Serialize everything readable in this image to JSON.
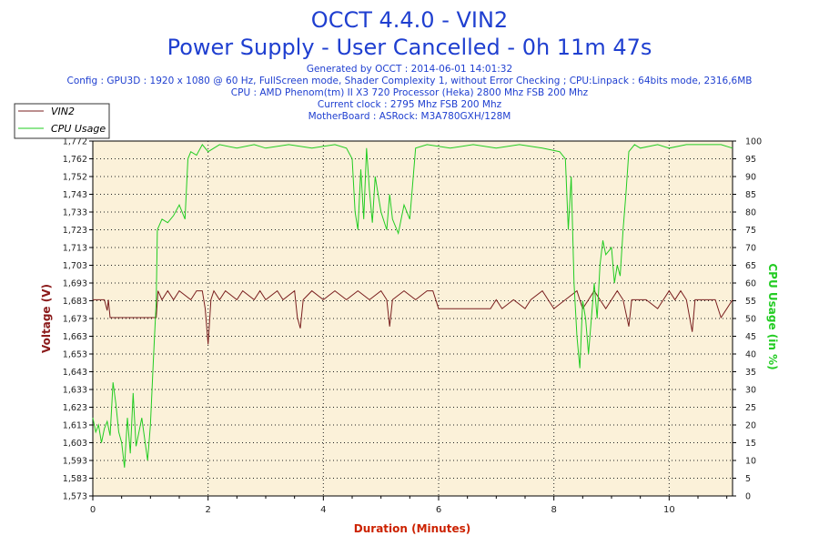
{
  "colors": {
    "voltage": "#7a1f1f",
    "cpu": "#22cc22",
    "title": "#1f3fd0",
    "info": "#1f3fd0",
    "plot_bg": "#fbf1d9",
    "axis_label": "#cc2200"
  },
  "header": {
    "title": "OCCT 4.4.0 - VIN2",
    "subtitle": "Power Supply - User Cancelled - 0h 11m 47s",
    "info_lines": [
      "Generated by OCCT : 2014-06-01 14:01:32",
      "Config : GPU3D : 1920 x 1080 @ 60 Hz, FullScreen mode, Shader Complexity 1, without Error Checking ; CPU:Linpack : 64bits mode, 2316,6MB",
      "CPU : AMD Phenom(tm) II X3 720 Processor (Heka) 2800 Mhz FSB 200 Mhz",
      "Current clock : 2795 Mhz FSB 200 Mhz",
      "MotherBoard : ASRock: M3A780GXH/128M"
    ]
  },
  "chart_data": {
    "type": "line",
    "xlabel": "Duration (Minutes)",
    "ylabel_left": "Voltage (V)",
    "ylabel_right": "CPU Usage (in %)",
    "xlim": [
      0,
      11.1
    ],
    "ylim_left": [
      1.573,
      1.772
    ],
    "ylim_right": [
      0,
      100
    ],
    "x_ticks": [
      "0",
      "2",
      "4",
      "6",
      "8",
      "10"
    ],
    "y_left_ticks": [
      "1,573",
      "1,583",
      "1,593",
      "1,603",
      "1,613",
      "1,623",
      "1,633",
      "1,643",
      "1,653",
      "1,663",
      "1,673",
      "1,683",
      "1,693",
      "1,703",
      "1,713",
      "1,723",
      "1,733",
      "1,743",
      "1,752",
      "1,762",
      "1,772"
    ],
    "y_right_ticks": [
      "0",
      "5",
      "10",
      "15",
      "20",
      "25",
      "30",
      "35",
      "40",
      "45",
      "50",
      "55",
      "60",
      "65",
      "70",
      "75",
      "80",
      "85",
      "90",
      "95",
      "100"
    ],
    "grid": true,
    "legend_position": "top-left",
    "series": [
      {
        "name": "VIN2",
        "axis": "left",
        "points": [
          [
            0.0,
            1.683
          ],
          [
            0.2,
            1.683
          ],
          [
            0.25,
            1.677
          ],
          [
            0.27,
            1.683
          ],
          [
            0.3,
            1.673
          ],
          [
            0.5,
            1.673
          ],
          [
            1.0,
            1.673
          ],
          [
            1.1,
            1.673
          ],
          [
            1.13,
            1.688
          ],
          [
            1.2,
            1.683
          ],
          [
            1.3,
            1.688
          ],
          [
            1.4,
            1.683
          ],
          [
            1.5,
            1.688
          ],
          [
            1.7,
            1.683
          ],
          [
            1.8,
            1.688
          ],
          [
            1.9,
            1.688
          ],
          [
            1.95,
            1.678
          ],
          [
            2.0,
            1.658
          ],
          [
            2.05,
            1.683
          ],
          [
            2.1,
            1.688
          ],
          [
            2.2,
            1.683
          ],
          [
            2.3,
            1.688
          ],
          [
            2.5,
            1.683
          ],
          [
            2.6,
            1.688
          ],
          [
            2.8,
            1.683
          ],
          [
            2.9,
            1.688
          ],
          [
            3.0,
            1.683
          ],
          [
            3.2,
            1.688
          ],
          [
            3.3,
            1.683
          ],
          [
            3.5,
            1.688
          ],
          [
            3.55,
            1.673
          ],
          [
            3.6,
            1.667
          ],
          [
            3.65,
            1.683
          ],
          [
            3.8,
            1.688
          ],
          [
            4.0,
            1.683
          ],
          [
            4.2,
            1.688
          ],
          [
            4.4,
            1.683
          ],
          [
            4.6,
            1.688
          ],
          [
            4.8,
            1.683
          ],
          [
            5.0,
            1.688
          ],
          [
            5.1,
            1.683
          ],
          [
            5.15,
            1.668
          ],
          [
            5.2,
            1.683
          ],
          [
            5.4,
            1.688
          ],
          [
            5.6,
            1.683
          ],
          [
            5.8,
            1.688
          ],
          [
            5.9,
            1.688
          ],
          [
            6.0,
            1.678
          ],
          [
            6.5,
            1.678
          ],
          [
            6.9,
            1.678
          ],
          [
            7.0,
            1.683
          ],
          [
            7.1,
            1.678
          ],
          [
            7.3,
            1.683
          ],
          [
            7.5,
            1.678
          ],
          [
            7.6,
            1.683
          ],
          [
            7.8,
            1.688
          ],
          [
            7.9,
            1.683
          ],
          [
            8.0,
            1.678
          ],
          [
            8.2,
            1.683
          ],
          [
            8.4,
            1.688
          ],
          [
            8.5,
            1.678
          ],
          [
            8.6,
            1.683
          ],
          [
            8.7,
            1.688
          ],
          [
            8.9,
            1.678
          ],
          [
            9.1,
            1.688
          ],
          [
            9.2,
            1.683
          ],
          [
            9.3,
            1.668
          ],
          [
            9.35,
            1.683
          ],
          [
            9.6,
            1.683
          ],
          [
            9.8,
            1.678
          ],
          [
            10.0,
            1.688
          ],
          [
            10.1,
            1.683
          ],
          [
            10.2,
            1.688
          ],
          [
            10.3,
            1.683
          ],
          [
            10.4,
            1.665
          ],
          [
            10.45,
            1.683
          ],
          [
            10.6,
            1.683
          ],
          [
            10.8,
            1.683
          ],
          [
            10.9,
            1.673
          ],
          [
            11.0,
            1.678
          ],
          [
            11.1,
            1.683
          ]
        ]
      },
      {
        "name": "CPU Usage",
        "axis": "right",
        "points": [
          [
            0.0,
            22
          ],
          [
            0.05,
            18
          ],
          [
            0.1,
            20
          ],
          [
            0.15,
            15
          ],
          [
            0.2,
            19
          ],
          [
            0.25,
            21
          ],
          [
            0.3,
            17
          ],
          [
            0.35,
            32
          ],
          [
            0.4,
            26
          ],
          [
            0.45,
            18
          ],
          [
            0.5,
            15
          ],
          [
            0.55,
            8
          ],
          [
            0.6,
            22
          ],
          [
            0.65,
            12
          ],
          [
            0.7,
            29
          ],
          [
            0.75,
            14
          ],
          [
            0.8,
            18
          ],
          [
            0.85,
            22
          ],
          [
            0.9,
            16
          ],
          [
            0.95,
            10
          ],
          [
            1.0,
            20
          ],
          [
            1.05,
            38
          ],
          [
            1.1,
            55
          ],
          [
            1.12,
            75
          ],
          [
            1.2,
            78
          ],
          [
            1.3,
            77
          ],
          [
            1.4,
            79
          ],
          [
            1.5,
            82
          ],
          [
            1.6,
            78
          ],
          [
            1.65,
            95
          ],
          [
            1.7,
            97
          ],
          [
            1.8,
            96
          ],
          [
            1.9,
            99
          ],
          [
            2.0,
            97
          ],
          [
            2.2,
            99
          ],
          [
            2.5,
            98
          ],
          [
            2.8,
            99
          ],
          [
            3.0,
            98
          ],
          [
            3.4,
            99
          ],
          [
            3.8,
            98
          ],
          [
            4.2,
            99
          ],
          [
            4.4,
            98
          ],
          [
            4.5,
            95
          ],
          [
            4.55,
            80
          ],
          [
            4.6,
            75
          ],
          [
            4.65,
            92
          ],
          [
            4.7,
            78
          ],
          [
            4.75,
            98
          ],
          [
            4.8,
            86
          ],
          [
            4.85,
            77
          ],
          [
            4.9,
            90
          ],
          [
            5.0,
            80
          ],
          [
            5.1,
            75
          ],
          [
            5.15,
            85
          ],
          [
            5.2,
            78
          ],
          [
            5.3,
            74
          ],
          [
            5.4,
            82
          ],
          [
            5.5,
            78
          ],
          [
            5.6,
            98
          ],
          [
            5.8,
            99
          ],
          [
            6.2,
            98
          ],
          [
            6.6,
            99
          ],
          [
            7.0,
            98
          ],
          [
            7.4,
            99
          ],
          [
            7.8,
            98
          ],
          [
            8.1,
            97
          ],
          [
            8.2,
            95
          ],
          [
            8.25,
            75
          ],
          [
            8.3,
            90
          ],
          [
            8.35,
            60
          ],
          [
            8.4,
            45
          ],
          [
            8.45,
            36
          ],
          [
            8.5,
            55
          ],
          [
            8.55,
            50
          ],
          [
            8.6,
            40
          ],
          [
            8.7,
            60
          ],
          [
            8.75,
            50
          ],
          [
            8.8,
            65
          ],
          [
            8.85,
            72
          ],
          [
            8.9,
            68
          ],
          [
            9.0,
            70
          ],
          [
            9.05,
            60
          ],
          [
            9.1,
            65
          ],
          [
            9.15,
            62
          ],
          [
            9.2,
            75
          ],
          [
            9.25,
            85
          ],
          [
            9.3,
            97
          ],
          [
            9.4,
            99
          ],
          [
            9.5,
            98
          ],
          [
            9.8,
            99
          ],
          [
            10.0,
            98
          ],
          [
            10.3,
            99
          ],
          [
            10.6,
            99
          ],
          [
            10.9,
            99
          ],
          [
            11.1,
            98
          ]
        ]
      }
    ]
  }
}
